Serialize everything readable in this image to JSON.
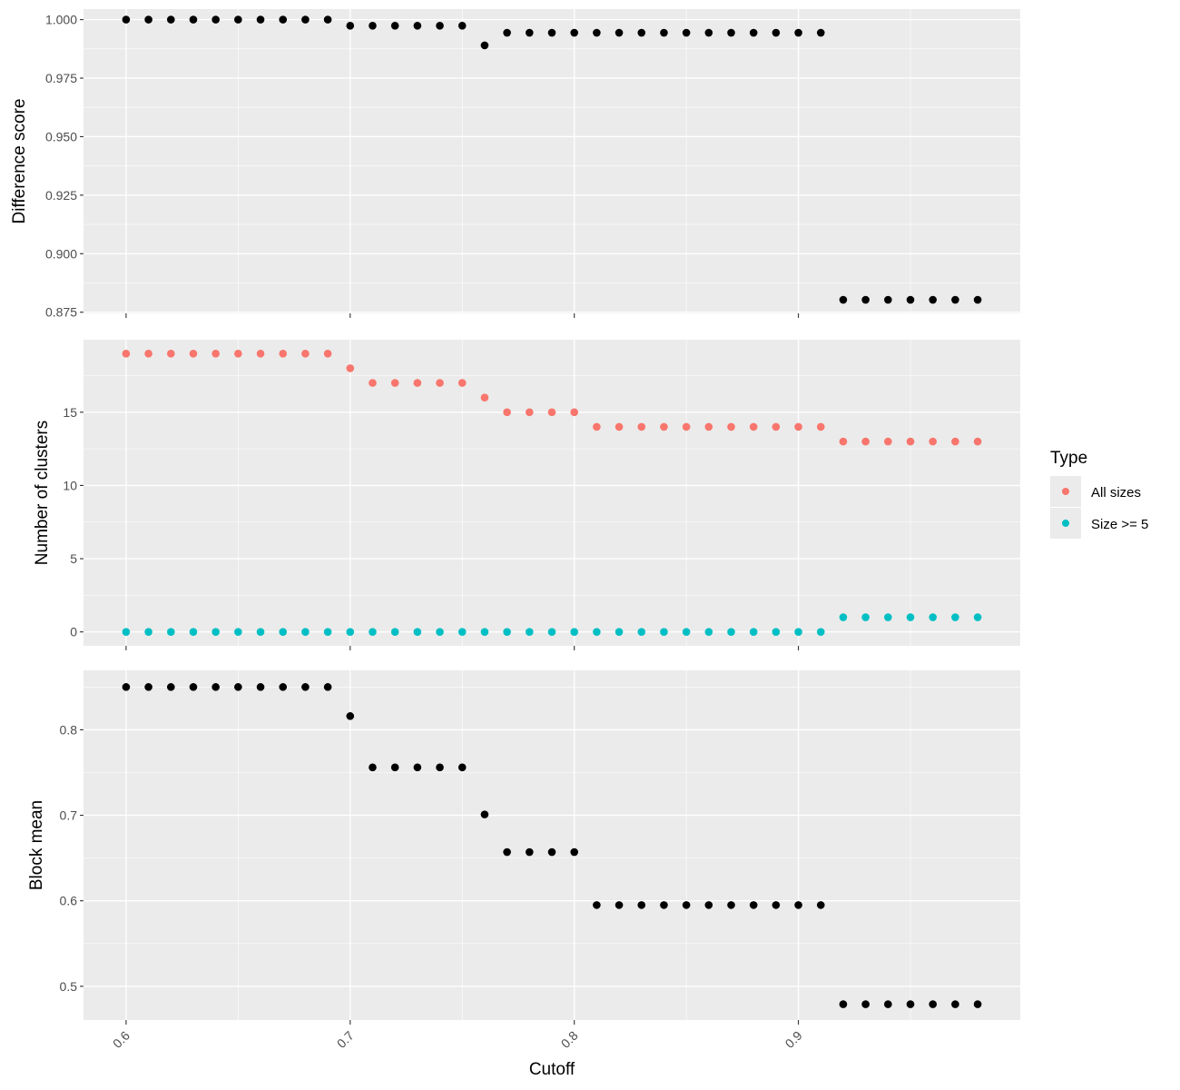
{
  "chart_data": {
    "type": "scatter",
    "x": [
      0.6,
      0.61,
      0.62,
      0.63,
      0.64,
      0.65,
      0.66,
      0.67,
      0.68,
      0.69,
      0.7,
      0.71,
      0.72,
      0.73,
      0.74,
      0.75,
      0.76,
      0.77,
      0.78,
      0.79,
      0.8,
      0.81,
      0.82,
      0.83,
      0.84,
      0.85,
      0.86,
      0.87,
      0.88,
      0.89,
      0.9,
      0.91,
      0.92,
      0.93,
      0.94,
      0.95,
      0.96,
      0.97,
      0.98
    ],
    "xlabel": "Cutoff",
    "xlim": [
      0.581,
      0.999
    ],
    "x_ticks": [
      "0.6",
      "0.7",
      "0.8",
      "0.9"
    ],
    "x_tick_values": [
      0.6,
      0.7,
      0.8,
      0.9
    ],
    "x_tick_rotation": "45 degrees",
    "grid": true,
    "panels": [
      {
        "ylabel": "Difference score",
        "ylim": [
          0.8745,
          1.0045
        ],
        "y_ticks": [
          "0.875",
          "0.900",
          "0.925",
          "0.950",
          "0.975",
          "1.000"
        ],
        "y_tick_values": [
          0.875,
          0.9,
          0.925,
          0.95,
          0.975,
          1.0
        ],
        "series": [
          {
            "color": "#000000",
            "values": [
              1.0,
              1.0,
              1.0,
              1.0,
              1.0,
              1.0,
              1.0,
              1.0,
              1.0,
              1.0,
              0.9974,
              0.9974,
              0.9974,
              0.9974,
              0.9974,
              0.9974,
              0.989,
              0.9944,
              0.9944,
              0.9944,
              0.9944,
              0.9944,
              0.9944,
              0.9944,
              0.9944,
              0.9944,
              0.9944,
              0.9944,
              0.9944,
              0.9944,
              0.9944,
              0.9944,
              0.8803,
              0.8803,
              0.8803,
              0.8803,
              0.8803,
              0.8803,
              0.8803
            ]
          }
        ]
      },
      {
        "ylabel": "Number of clusters",
        "ylim": [
          -0.95,
          19.95
        ],
        "y_ticks": [
          "0",
          "5",
          "10",
          "15"
        ],
        "y_tick_values": [
          0,
          5,
          10,
          15
        ],
        "series": [
          {
            "name": "All sizes",
            "color": "#F8766D",
            "values": [
              19,
              19,
              19,
              19,
              19,
              19,
              19,
              19,
              19,
              19,
              18,
              17,
              17,
              17,
              17,
              17,
              16,
              15,
              15,
              15,
              15,
              14,
              14,
              14,
              14,
              14,
              14,
              14,
              14,
              14,
              14,
              14,
              13,
              13,
              13,
              13,
              13,
              13,
              13
            ]
          },
          {
            "name": "Size >= 5",
            "color": "#00BFC4",
            "values": [
              0,
              0,
              0,
              0,
              0,
              0,
              0,
              0,
              0,
              0,
              0,
              0,
              0,
              0,
              0,
              0,
              0,
              0,
              0,
              0,
              0,
              0,
              0,
              0,
              0,
              0,
              0,
              0,
              0,
              0,
              0,
              0,
              1,
              1,
              1,
              1,
              1,
              1,
              1
            ]
          }
        ]
      },
      {
        "ylabel": "Block mean",
        "ylim": [
          0.4605,
          0.8695
        ],
        "y_ticks": [
          "0.5",
          "0.6",
          "0.7",
          "0.8"
        ],
        "y_tick_values": [
          0.5,
          0.6,
          0.7,
          0.8
        ],
        "series": [
          {
            "color": "#000000",
            "values": [
              0.85,
              0.85,
              0.85,
              0.85,
              0.85,
              0.85,
              0.85,
              0.85,
              0.85,
              0.85,
              0.816,
              0.756,
              0.756,
              0.756,
              0.756,
              0.756,
              0.701,
              0.657,
              0.657,
              0.657,
              0.657,
              0.595,
              0.595,
              0.595,
              0.595,
              0.595,
              0.595,
              0.595,
              0.595,
              0.595,
              0.595,
              0.595,
              0.479,
              0.479,
              0.479,
              0.479,
              0.479,
              0.479,
              0.479
            ]
          }
        ]
      }
    ],
    "legend": {
      "title": "Type",
      "placement": "right",
      "entries": [
        {
          "label": "All sizes",
          "color": "#F8766D"
        },
        {
          "label": "Size >= 5",
          "color": "#00BFC4"
        }
      ]
    }
  }
}
